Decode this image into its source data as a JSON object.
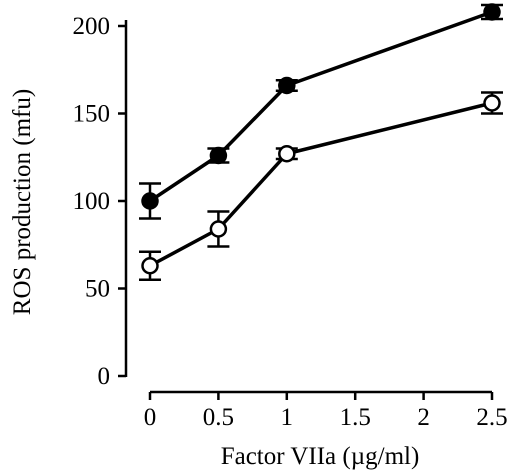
{
  "chart_data": {
    "type": "line",
    "title": "",
    "xlabel": "Factor VIIa (µg/ml)",
    "ylabel": "ROS production (mfu)",
    "x_ticks": [
      "0",
      "0.5",
      "1",
      "1.5",
      "2",
      "2.5"
    ],
    "y_ticks": [
      "0",
      "50",
      "100",
      "150",
      "200"
    ],
    "ylim": [
      0,
      200
    ],
    "xlim": [
      0,
      2.5
    ],
    "grid": false,
    "legend": "none",
    "x": [
      0,
      0.5,
      1,
      2.5
    ],
    "series": [
      {
        "marker": "filled-circle",
        "values": [
          100,
          126,
          166,
          208
        ],
        "errors": [
          10,
          4,
          3,
          4
        ]
      },
      {
        "marker": "open-circle",
        "values": [
          63,
          84,
          127,
          156
        ],
        "errors": [
          8,
          10,
          3,
          6
        ]
      }
    ]
  }
}
